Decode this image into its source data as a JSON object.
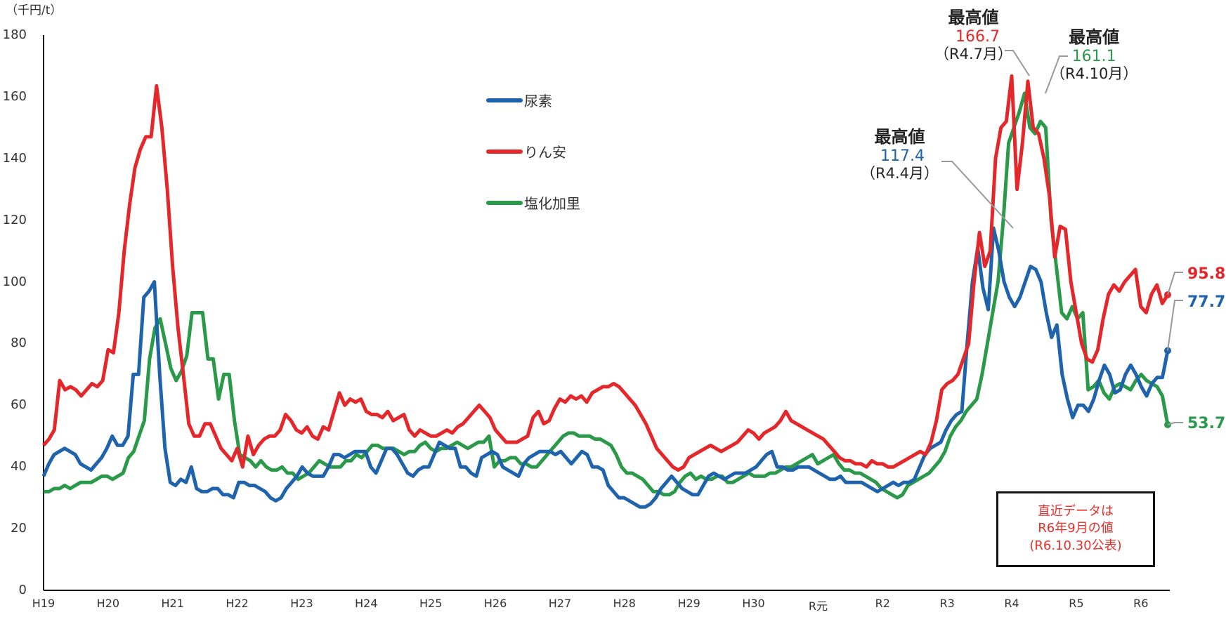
{
  "unit_label": "（千円/t）",
  "y_ticks": [
    "0",
    "20",
    "40",
    "60",
    "80",
    "100",
    "120",
    "140",
    "160",
    "180"
  ],
  "x_ticks": [
    "H19",
    "H20",
    "H21",
    "H22",
    "H23",
    "H24",
    "H25",
    "H26",
    "H27",
    "H28",
    "H29",
    "H30",
    "R元",
    "R2",
    "R3",
    "R4",
    "R5",
    "R6"
  ],
  "legend": [
    {
      "label": "尿素",
      "color": "#1f63ad"
    },
    {
      "label": "りん安",
      "color": "#e3272a"
    },
    {
      "label": "塩化加里",
      "color": "#2a9a4a"
    }
  ],
  "annotations": {
    "urea_max": {
      "title": "最高値",
      "value": "117.4",
      "date": "（R4.4月）"
    },
    "dap_max": {
      "title": "最高値",
      "value": "166.7",
      "date": "（R4.7月）"
    },
    "kcl_max": {
      "title": "最高値",
      "value": "161.1",
      "date": "（R4.10月）"
    }
  },
  "end_labels": {
    "dap": "95.8",
    "urea": "77.7",
    "kcl": "53.7"
  },
  "note": {
    "line1": "直近データは",
    "line2": "R6年9月の値",
    "line3": "(R6.10.30公表)"
  },
  "chart_data": {
    "type": "line",
    "title": "",
    "xlabel": "",
    "ylabel": "（千円/t）",
    "ylim": [
      0,
      180
    ],
    "x_start": "H19.4 (2007-04)",
    "x_end": "R6.9 (2024-09)",
    "frequency": "monthly",
    "x_tick_labels": [
      "H19",
      "H20",
      "H21",
      "H22",
      "H23",
      "H24",
      "H25",
      "H26",
      "H27",
      "H28",
      "H29",
      "H30",
      "R元",
      "R2",
      "R3",
      "R4",
      "R5",
      "R6"
    ],
    "legend_position": "upper-center",
    "grid": false,
    "series": [
      {
        "name": "尿素",
        "color": "#1f63ad",
        "values": [
          37,
          41,
          44,
          45,
          46,
          45,
          44,
          41,
          40,
          39,
          41,
          43,
          46,
          50,
          47,
          47,
          50,
          70,
          70,
          95,
          97,
          100,
          70,
          46,
          35,
          34,
          36,
          35,
          40,
          33,
          32,
          32,
          33,
          33,
          31,
          31,
          30,
          35,
          35,
          34,
          34,
          33,
          32,
          30,
          29,
          30,
          33,
          35,
          37,
          40,
          38,
          37,
          37,
          37,
          40,
          44,
          44,
          43,
          44,
          45,
          45,
          45,
          40,
          38,
          42,
          46,
          46,
          44,
          41,
          38,
          37,
          39,
          40,
          40,
          44,
          48,
          47,
          46,
          46,
          40,
          40,
          38,
          37,
          43,
          44,
          45,
          44,
          40,
          39,
          38,
          37,
          41,
          43,
          44,
          45,
          45,
          45,
          44,
          45,
          43,
          41,
          43,
          45,
          44,
          40,
          40,
          39,
          34,
          32,
          30,
          30,
          29,
          28,
          27,
          27,
          28,
          30,
          33,
          35,
          37,
          35,
          33,
          32,
          31,
          31,
          34,
          37,
          38,
          37,
          36,
          37,
          38,
          38,
          38,
          39,
          40,
          42,
          44,
          45,
          40,
          40,
          39,
          39,
          40,
          40,
          40,
          39,
          38,
          37,
          36,
          36,
          37,
          35,
          35,
          35,
          35,
          34,
          33,
          32,
          33,
          34,
          35,
          34,
          35,
          35,
          36,
          40,
          44,
          46,
          47,
          48,
          52,
          55,
          57,
          58,
          80,
          100,
          111,
          98,
          91,
          117.4,
          110,
          100,
          95,
          92,
          95,
          100,
          105,
          104,
          100,
          90,
          82,
          86,
          70,
          62,
          56,
          60,
          60,
          58,
          62,
          68,
          73,
          70,
          64,
          65,
          70,
          73,
          70,
          66,
          63,
          67,
          69,
          69,
          77.7
        ]
      },
      {
        "name": "りん安",
        "color": "#e3272a",
        "values": [
          47,
          49,
          52,
          68,
          65,
          66,
          65,
          63,
          65,
          67,
          66,
          68,
          78,
          77,
          90,
          110,
          125,
          137,
          143,
          147,
          147,
          163.5,
          150,
          130,
          105,
          85,
          70,
          54,
          50,
          50,
          54,
          54,
          50,
          46,
          44,
          42,
          46,
          40,
          50,
          44,
          47,
          49,
          50,
          50,
          52,
          57,
          55,
          52,
          51,
          53,
          50,
          49,
          53,
          52,
          58,
          64,
          60,
          62,
          61,
          62,
          58,
          57,
          57,
          56,
          58,
          55,
          56,
          57,
          52,
          50,
          52,
          51,
          50,
          50,
          51,
          52,
          51,
          53,
          54,
          56,
          58,
          60,
          58,
          56,
          52,
          50,
          48,
          48,
          48,
          49,
          50,
          56,
          58,
          54,
          55,
          59,
          62,
          61,
          63,
          62,
          63,
          61,
          64,
          65,
          66,
          66,
          67,
          66,
          64,
          62,
          60,
          57,
          54,
          50,
          46,
          44,
          42,
          40,
          39,
          40,
          43,
          44,
          45,
          46,
          47,
          46,
          45,
          46,
          47,
          48,
          50,
          52,
          51,
          49,
          51,
          52,
          53,
          55,
          58,
          55,
          54,
          53,
          52,
          51,
          50,
          49,
          47,
          45,
          43,
          42,
          42,
          41,
          41,
          40,
          42,
          41,
          41,
          40,
          40,
          41,
          42,
          43,
          44,
          45,
          44,
          48,
          55,
          65,
          67,
          68,
          70,
          75,
          80,
          100,
          116,
          105,
          110,
          140,
          150,
          152,
          166.7,
          130,
          145,
          165,
          150,
          148,
          140,
          128,
          108,
          118,
          117,
          100,
          90,
          80,
          75,
          74,
          78,
          88,
          96,
          99,
          97,
          100,
          102,
          104,
          92,
          90,
          96,
          99,
          93,
          95.8
        ]
      },
      {
        "name": "塩化加里",
        "color": "#2a9a4a",
        "values": [
          32,
          32,
          33,
          33,
          34,
          33,
          34,
          35,
          35,
          35,
          36,
          37,
          37,
          36,
          37,
          38,
          43,
          45,
          50,
          55,
          75,
          85,
          88,
          80,
          72,
          68,
          71,
          76,
          90,
          90,
          90,
          75,
          75,
          62,
          70,
          70,
          55,
          44,
          43,
          42,
          40,
          42,
          40,
          39,
          39,
          40,
          38,
          38,
          36,
          37,
          38,
          40,
          42,
          41,
          40,
          40,
          40,
          42,
          42,
          44,
          43,
          45,
          47,
          47,
          46,
          46,
          46,
          45,
          44,
          45,
          45,
          47,
          48,
          46,
          45,
          46,
          46,
          47,
          48,
          47,
          46,
          47,
          48,
          48,
          50,
          40,
          42,
          42,
          43,
          43,
          41,
          41,
          40,
          40,
          42,
          44,
          46,
          48,
          50,
          51,
          51,
          50,
          50,
          50,
          49,
          49,
          48,
          47,
          44,
          40,
          38,
          38,
          37,
          36,
          34,
          32,
          32,
          31,
          31,
          32,
          35,
          37,
          38,
          36,
          37,
          36,
          36,
          37,
          37,
          35,
          35,
          36,
          37,
          38,
          37,
          37,
          37,
          38,
          38,
          39,
          40,
          40,
          41,
          42,
          43,
          44,
          41,
          42,
          43,
          44,
          41,
          39,
          39,
          38,
          38,
          37,
          36,
          35,
          33,
          32,
          31,
          30,
          31,
          34,
          35,
          36,
          37,
          38,
          40,
          42,
          45,
          50,
          53,
          55,
          58,
          60,
          62,
          70,
          80,
          90,
          100,
          120,
          145,
          150,
          155,
          161.1,
          150,
          148,
          152,
          150,
          120,
          105,
          90,
          88,
          92,
          88,
          90,
          65,
          66,
          68,
          64,
          62,
          66,
          67,
          66,
          65,
          68,
          70,
          68,
          67,
          66,
          63,
          53.7
        ]
      }
    ]
  }
}
